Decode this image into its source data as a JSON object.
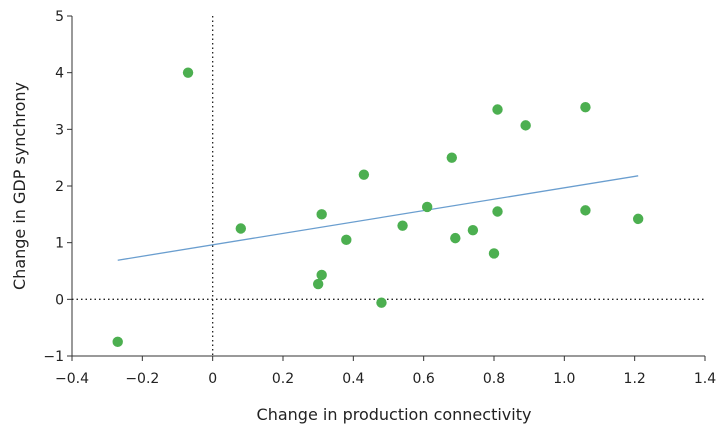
{
  "chart_data": {
    "type": "scatter",
    "xlabel": "Change in production connectivity",
    "ylabel": "Change in GDP synchrony",
    "xlim": [
      -0.4,
      1.4
    ],
    "ylim": [
      -1,
      5
    ],
    "x_ticks": [
      "−0.4",
      "−0.2",
      "0",
      "0.2",
      "0.4",
      "0.6",
      "0.8",
      "1.0",
      "1.2",
      "1.4"
    ],
    "y_ticks": [
      "−1",
      "0",
      "1",
      "2",
      "3",
      "4",
      "5"
    ],
    "grid": false,
    "reference_lines": {
      "x_zero": "dotted",
      "y_zero": "dotted"
    },
    "colors": {
      "points": "#4caf50",
      "trend_line": "#6a9ecf",
      "axis": "#333333"
    },
    "points": [
      {
        "x": -0.27,
        "y": -0.75
      },
      {
        "x": -0.07,
        "y": 4.0
      },
      {
        "x": 0.08,
        "y": 1.25
      },
      {
        "x": 0.3,
        "y": 0.27
      },
      {
        "x": 0.31,
        "y": 0.43
      },
      {
        "x": 0.31,
        "y": 1.5
      },
      {
        "x": 0.38,
        "y": 1.05
      },
      {
        "x": 0.43,
        "y": 2.2
      },
      {
        "x": 0.48,
        "y": -0.06
      },
      {
        "x": 0.54,
        "y": 1.3
      },
      {
        "x": 0.61,
        "y": 1.63
      },
      {
        "x": 0.68,
        "y": 2.5
      },
      {
        "x": 0.69,
        "y": 1.08
      },
      {
        "x": 0.74,
        "y": 1.22
      },
      {
        "x": 0.8,
        "y": 0.81
      },
      {
        "x": 0.81,
        "y": 3.35
      },
      {
        "x": 0.81,
        "y": 1.55
      },
      {
        "x": 0.89,
        "y": 3.07
      },
      {
        "x": 1.06,
        "y": 3.39
      },
      {
        "x": 1.06,
        "y": 1.57
      },
      {
        "x": 1.21,
        "y": 1.42
      }
    ],
    "trend_line": {
      "x": [
        -0.27,
        1.21
      ],
      "y": [
        0.69,
        2.18
      ]
    }
  }
}
